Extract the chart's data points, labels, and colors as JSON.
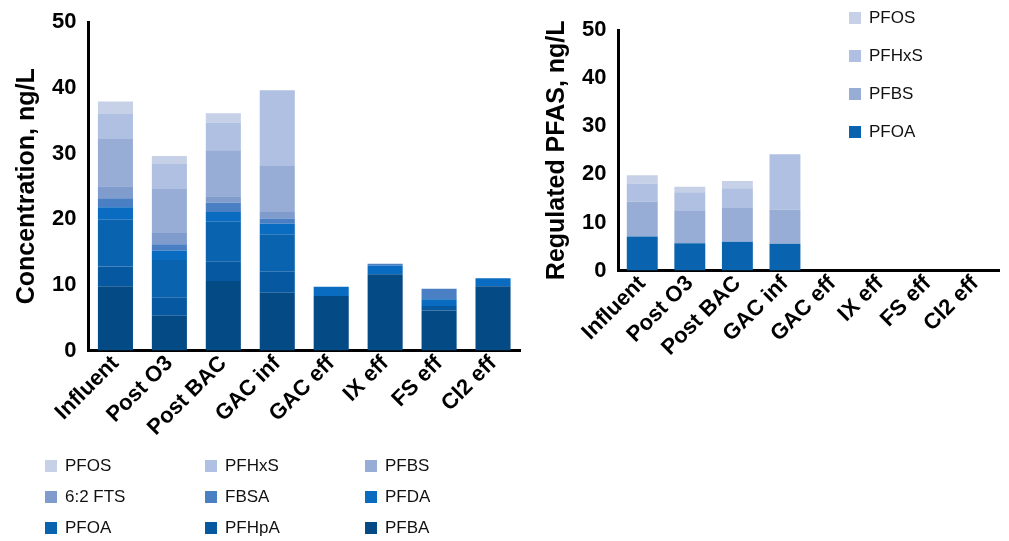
{
  "chart_data": [
    {
      "type": "bar",
      "stacked": true,
      "ylabel": "Concentration, ng/L",
      "categories": [
        "Influent",
        "Post O3",
        "Post BAC",
        "GAC inf",
        "GAC eff",
        "IX eff",
        "FS eff",
        "Cl2 eff"
      ],
      "ylim": [
        0,
        50
      ],
      "yticks": [
        0,
        10,
        20,
        30,
        40,
        50
      ],
      "grid": false,
      "legend": "bottom",
      "series": [
        {
          "name": "PFBA",
          "color": "#044a85",
          "values": [
            9.8,
            5.3,
            10.6,
            8.8,
            8.3,
            11.6,
            6.1,
            9.8
          ]
        },
        {
          "name": "PFHpA",
          "color": "#0659a0",
          "values": [
            3.0,
            2.8,
            3.0,
            3.2,
            null,
            null,
            0.7,
            null
          ]
        },
        {
          "name": "PFOA",
          "color": "#0a63ae",
          "values": [
            7.1,
            5.7,
            6.0,
            5.7,
            null,
            null,
            null,
            null
          ]
        },
        {
          "name": "PFDA",
          "color": "#0a6cc0",
          "values": [
            1.9,
            1.4,
            1.5,
            1.6,
            1.4,
            1.3,
            1.0,
            1.2
          ]
        },
        {
          "name": "FBSA",
          "color": "#4a7fc4",
          "values": [
            1.4,
            1.0,
            1.4,
            0.8,
            null,
            0.3,
            1.6,
            null
          ]
        },
        {
          "name": "6:2 FTS",
          "color": "#7f9ccc",
          "values": [
            1.8,
            1.7,
            1.0,
            1.0,
            null,
            null,
            null,
            null
          ]
        },
        {
          "name": "PFBS",
          "color": "#98add6",
          "values": [
            7.2,
            6.7,
            7.0,
            7.0,
            null,
            null,
            null,
            null
          ]
        },
        {
          "name": "PFHxS",
          "color": "#b0c0e2",
          "values": [
            3.8,
            3.8,
            4.2,
            11.5,
            null,
            null,
            null,
            null
          ]
        },
        {
          "name": "PFOS",
          "color": "#c6d0e6",
          "values": [
            1.9,
            1.2,
            1.4,
            null,
            null,
            null,
            null,
            null
          ]
        }
      ]
    },
    {
      "type": "bar",
      "stacked": true,
      "ylabel": "Regulated PFAS, ng/L",
      "categories": [
        "Influent",
        "Post O3",
        "Post BAC",
        "GAC inf",
        "GAC eff",
        "IX eff",
        "FS eff",
        "Cl2 eff"
      ],
      "ylim": [
        0,
        50
      ],
      "yticks": [
        0,
        10,
        20,
        30,
        40,
        50
      ],
      "grid": false,
      "legend": "top right",
      "series": [
        {
          "name": "PFOA",
          "color": "#0a63ae",
          "values": [
            7.1,
            5.7,
            6.0,
            5.6,
            null,
            null,
            null,
            null
          ]
        },
        {
          "name": "PFBS",
          "color": "#98add6",
          "values": [
            7.2,
            6.7,
            7.0,
            7.1,
            null,
            null,
            null,
            null
          ]
        },
        {
          "name": "PFHxS",
          "color": "#b0c0e2",
          "values": [
            3.8,
            3.9,
            4.1,
            11.5,
            null,
            null,
            null,
            null
          ]
        },
        {
          "name": "PFOS",
          "color": "#c6d0e6",
          "values": [
            1.7,
            1.1,
            1.5,
            null,
            null,
            null,
            null,
            null
          ]
        }
      ]
    }
  ]
}
